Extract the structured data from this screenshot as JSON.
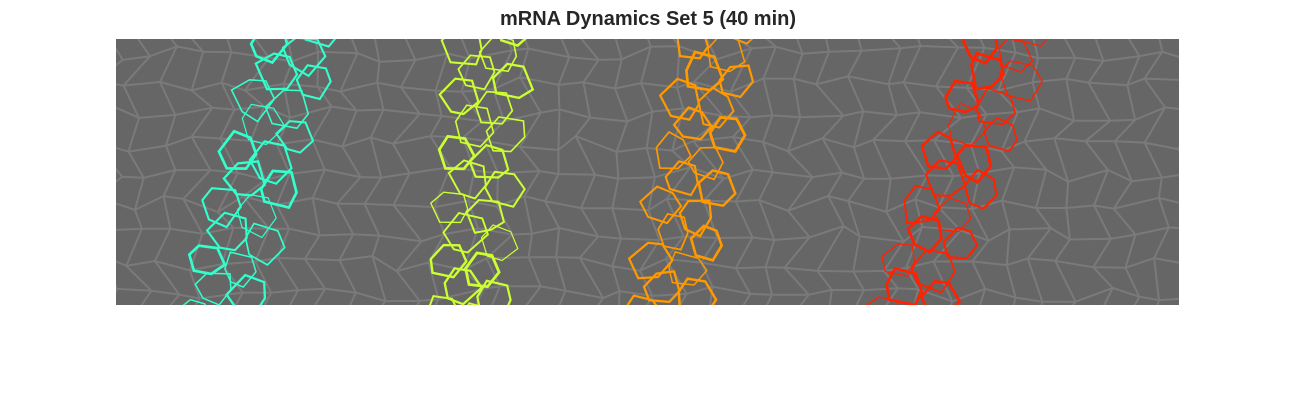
{
  "title": "mRNA Dynamics Set 5 (40 min)",
  "colors": {
    "background": "#666666",
    "membrane": "#7a7a7a",
    "stripes": [
      "#33ffcc",
      "#ccff33",
      "#ff9900",
      "#ff2200"
    ]
  }
}
